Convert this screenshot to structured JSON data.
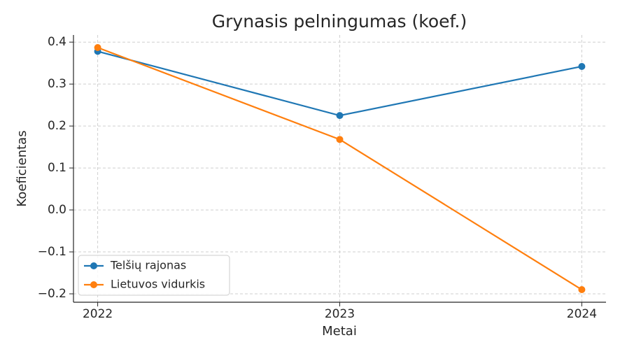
{
  "chart_data": {
    "type": "line",
    "title": "Grynasis pelningumas (koef.)",
    "xlabel": "Metai",
    "ylabel": "Koeficientas",
    "x": [
      2022,
      2023,
      2024
    ],
    "series": [
      {
        "name": "Telšių rajonas",
        "color": "#1f77b4",
        "values": [
          0.378,
          0.225,
          0.342
        ]
      },
      {
        "name": "Lietuvos vidurkis",
        "color": "#ff7f0e",
        "values": [
          0.387,
          0.168,
          -0.19
        ]
      }
    ],
    "xlim": [
      2021.9,
      2024.1
    ],
    "xticks": [
      2022,
      2023,
      2024
    ],
    "ylim": [
      -0.22,
      0.417
    ],
    "yticks": [
      {
        "value": -0.2,
        "label": "−0.2"
      },
      {
        "value": -0.1,
        "label": "−0.1"
      },
      {
        "value": 0,
        "label": "0.0"
      },
      0.1,
      0.2,
      0.3,
      0.4
    ],
    "grid": true,
    "legend": "lower left"
  }
}
